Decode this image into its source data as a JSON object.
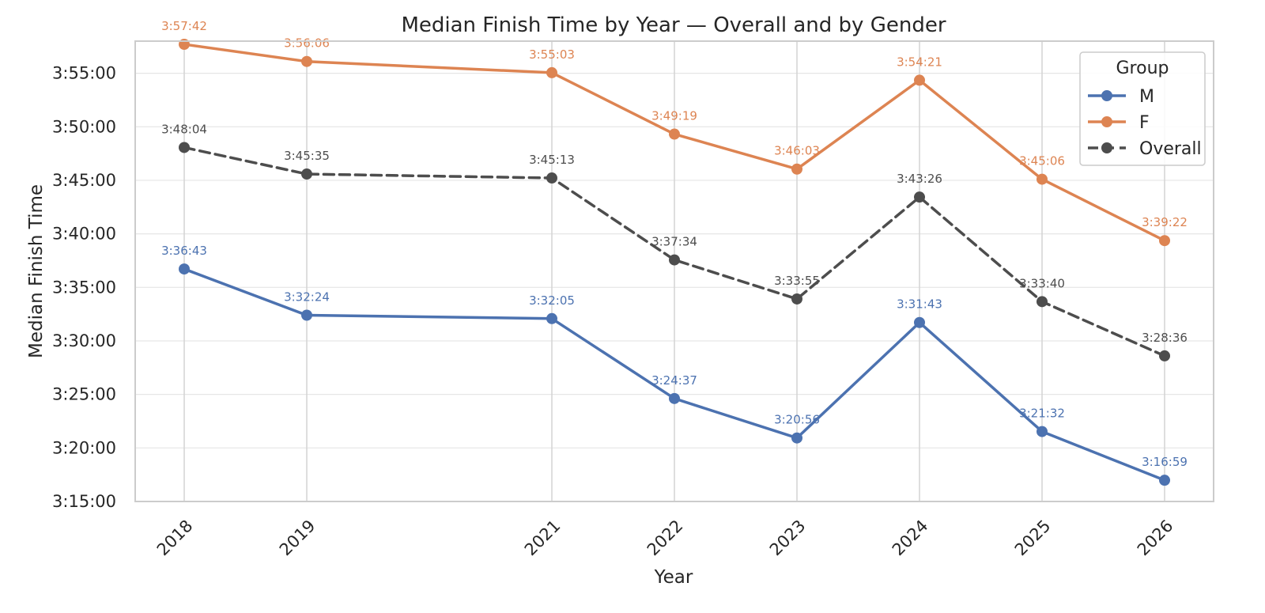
{
  "chart_data": {
    "type": "line",
    "title": "Median Finish Time by Year — Overall and by Gender",
    "xlabel": "Year",
    "ylabel": "Median Finish Time",
    "x": [
      2018,
      2019,
      2021,
      2022,
      2023,
      2024,
      2025,
      2026
    ],
    "xlim": [
      2017.6,
      2026.4
    ],
    "ylim_seconds": [
      11700,
      14280
    ],
    "yticks": [
      {
        "value": 11700,
        "label": "3:15:00"
      },
      {
        "value": 12000,
        "label": "3:20:00"
      },
      {
        "value": 12300,
        "label": "3:25:00"
      },
      {
        "value": 12600,
        "label": "3:30:00"
      },
      {
        "value": 12900,
        "label": "3:35:00"
      },
      {
        "value": 13200,
        "label": "3:40:00"
      },
      {
        "value": 13500,
        "label": "3:45:00"
      },
      {
        "value": 13800,
        "label": "3:50:00"
      },
      {
        "value": 14100,
        "label": "3:55:00"
      }
    ],
    "grid": true,
    "legend": {
      "title": "Group",
      "placement": "top-right"
    },
    "series": [
      {
        "name": "M",
        "color": "#4c72b0",
        "dashed": false,
        "labels": [
          "3:36:43",
          "3:32:24",
          "3:32:05",
          "3:24:37",
          "3:20:56",
          "3:31:43",
          "3:21:32",
          "3:16:59"
        ]
      },
      {
        "name": "F",
        "color": "#dd8452",
        "dashed": false,
        "labels": [
          "3:57:42",
          "3:56:06",
          "3:55:03",
          "3:49:19",
          "3:46:03",
          "3:54:21",
          "3:45:06",
          "3:39:22"
        ]
      },
      {
        "name": "Overall",
        "color": "#4d4d4d",
        "dashed": true,
        "labels": [
          "3:48:04",
          "3:45:35",
          "3:45:13",
          "3:37:34",
          "3:33:55",
          "3:43:26",
          "3:33:40",
          "3:28:36"
        ]
      }
    ]
  }
}
